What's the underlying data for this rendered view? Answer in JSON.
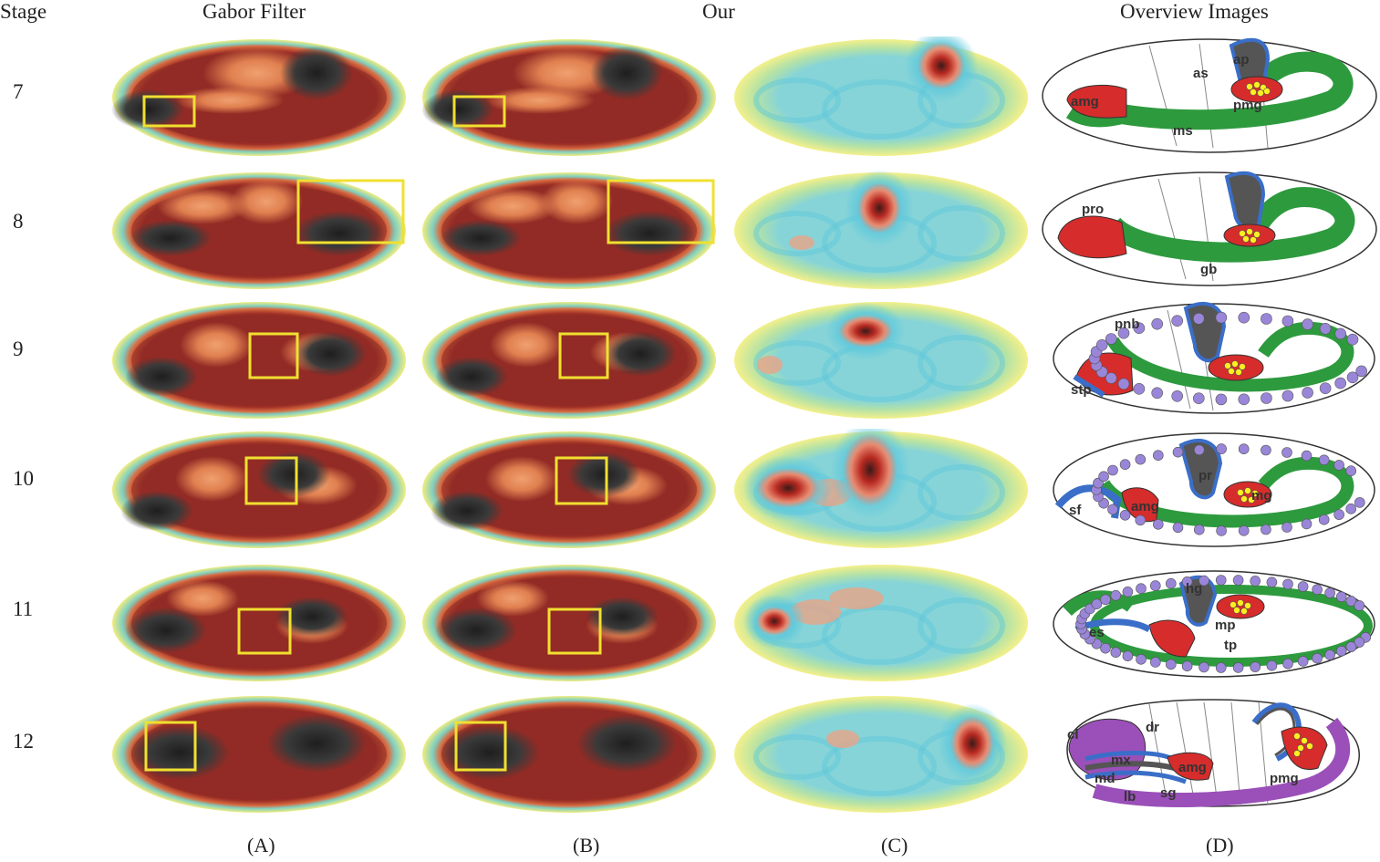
{
  "header": {
    "stage": "Stage",
    "col_a": "Gabor Filter",
    "col_bc": "Our",
    "col_d": "Overview Images"
  },
  "stages": [
    "7",
    "8",
    "9",
    "10",
    "11",
    "12"
  ],
  "captions": [
    "(A)",
    "(B)",
    "(C)",
    "(D)"
  ],
  "overview_labels": {
    "s7": [
      "as",
      "ap",
      "amg",
      "pmg",
      "ms"
    ],
    "s8": [
      "pro",
      "gb"
    ],
    "s9": [
      "pnb",
      "stp"
    ],
    "s10": [
      "pr",
      "sf",
      "amg",
      "mg"
    ],
    "s11": [
      "hg",
      "mp",
      "es",
      "tp"
    ],
    "s12": [
      "cl",
      "dr",
      "mx",
      "md",
      "amg",
      "pmg",
      "lb",
      "sg"
    ]
  },
  "colors": {
    "heat_dark": "#2b2b2b",
    "heat_red": "#a8322a",
    "heat_orange": "#e08050",
    "heat_teal": "#7fd0c0",
    "heat_yellow": "#f2ec80",
    "highlight_box": "#f0e030",
    "our_cyan": "#7fd6e0",
    "our_blob": "#c02820",
    "ov_green": "#2e9a3e",
    "ov_red": "#d62c2c",
    "ov_blue": "#3a6ec8",
    "ov_gray": "#555555",
    "ov_purple": "#9a86d8",
    "ov_yellow": "#ffef20"
  }
}
